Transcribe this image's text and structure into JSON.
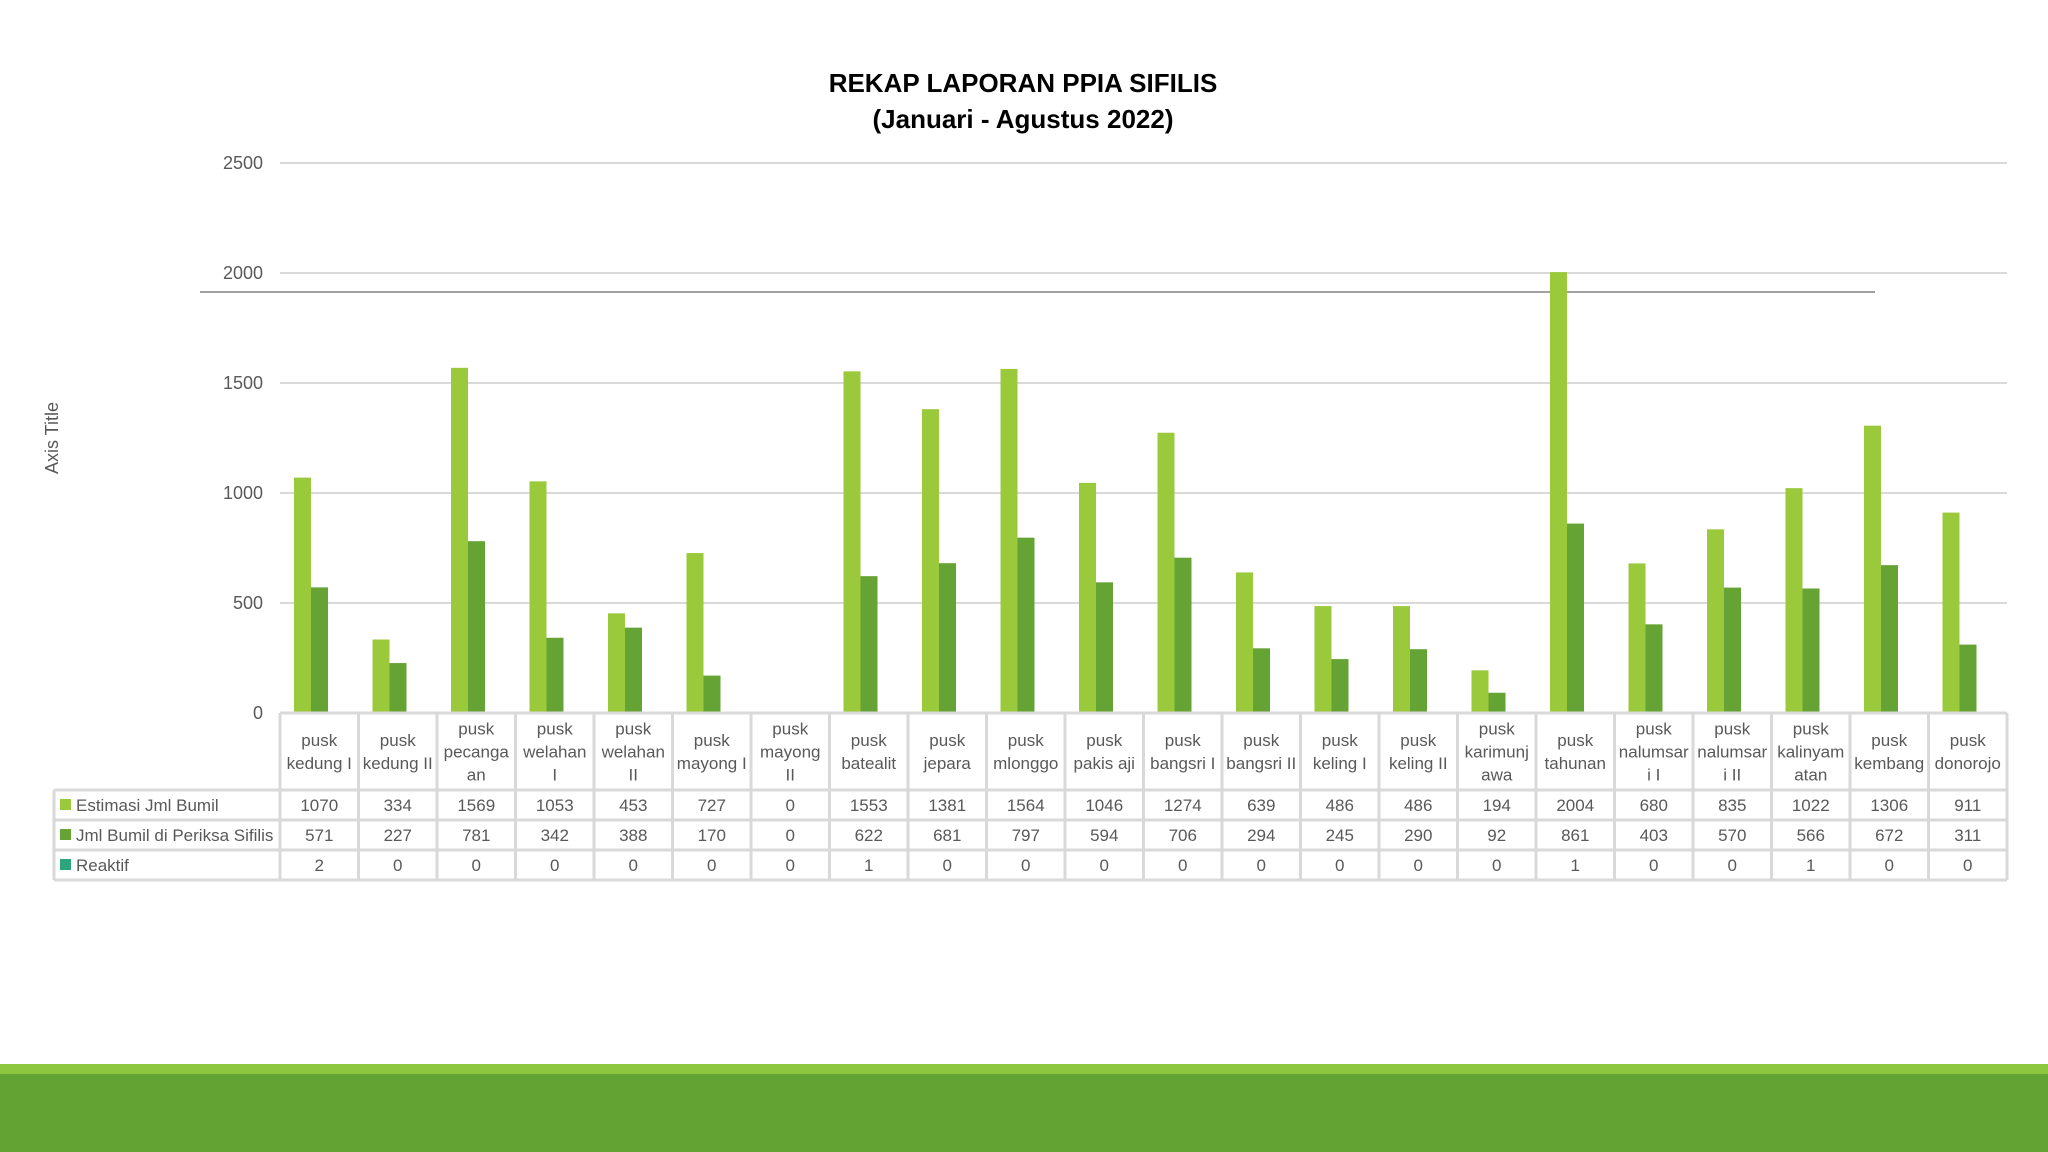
{
  "chart_data": {
    "type": "bar",
    "title": [
      "REKAP LAPORAN PPIA SIFILIS",
      "(Januari - Agustus 2022)"
    ],
    "ylabel": "Axis Title",
    "xlabel": "",
    "ylim": [
      0,
      2500
    ],
    "yticks": [
      0,
      500,
      1000,
      1500,
      2000,
      2500
    ],
    "grid": true,
    "legend": "data-table-left",
    "categories": [
      [
        "pusk",
        "kedung I"
      ],
      [
        "pusk",
        "kedung II"
      ],
      [
        "pusk",
        "pecanga",
        "an"
      ],
      [
        "pusk",
        "welahan",
        "I"
      ],
      [
        "pusk",
        "welahan",
        "II"
      ],
      [
        "pusk",
        "mayong I"
      ],
      [
        "pusk",
        "mayong",
        "II"
      ],
      [
        "pusk",
        "batealit"
      ],
      [
        "pusk",
        "jepara"
      ],
      [
        "pusk",
        "mlonggo"
      ],
      [
        "pusk",
        "pakis aji"
      ],
      [
        "pusk",
        "bangsri I"
      ],
      [
        "pusk",
        "bangsri II"
      ],
      [
        "pusk",
        "keling I"
      ],
      [
        "pusk",
        "keling II"
      ],
      [
        "pusk",
        "karimunj",
        "awa"
      ],
      [
        "pusk",
        "tahunan"
      ],
      [
        "pusk",
        "nalumsar",
        "i I"
      ],
      [
        "pusk",
        "nalumsar",
        "i II"
      ],
      [
        "pusk",
        "kalinyam",
        "atan"
      ],
      [
        "pusk",
        "kembang"
      ],
      [
        "pusk",
        "donorojo"
      ]
    ],
    "series": [
      {
        "name": "Estimasi Jml Bumil",
        "color": "#9BC93C",
        "values": [
          1070,
          334,
          1569,
          1053,
          453,
          727,
          0,
          1553,
          1381,
          1564,
          1046,
          1274,
          639,
          486,
          486,
          194,
          2004,
          680,
          835,
          1022,
          1306,
          911
        ]
      },
      {
        "name": "Jml Bumil di Periksa Sifilis",
        "color": "#64A334",
        "values": [
          571,
          227,
          781,
          342,
          388,
          170,
          0,
          622,
          681,
          797,
          594,
          706,
          294,
          245,
          290,
          92,
          861,
          403,
          570,
          566,
          672,
          311
        ]
      },
      {
        "name": "Reaktif",
        "color": "#2CA57C",
        "values": [
          2,
          0,
          0,
          0,
          0,
          0,
          0,
          1,
          0,
          0,
          0,
          0,
          0,
          0,
          0,
          0,
          1,
          0,
          0,
          1,
          0,
          0
        ]
      }
    ]
  },
  "colors": {
    "footer_stripe": "#8DC63F",
    "footer_band": "#62A333",
    "gridline": "#D9D9D9",
    "table_border": "#D9D9D9"
  }
}
